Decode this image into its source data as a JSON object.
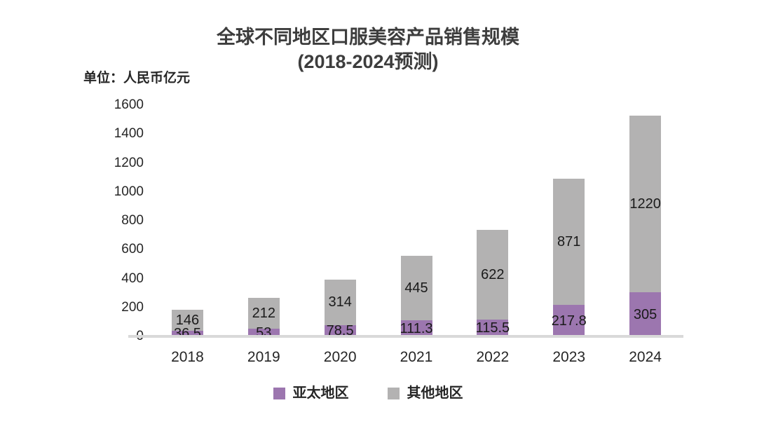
{
  "title": {
    "line1": "全球不同地区口服美容产品销售规模",
    "line2": "(2018-2024预测)"
  },
  "unit_label": "单位：人民币亿元",
  "colors": {
    "apac": "#9c76af",
    "other": "#b3b2b2",
    "baseline": "#d9d9d9",
    "label_text": "#1a1a1a"
  },
  "chart_data": {
    "type": "bar",
    "stacked": true,
    "title": "全球不同地区口服美容产品销售规模 (2018-2024预测)",
    "unit": "单位：人民币亿元",
    "categories": [
      "2018",
      "2019",
      "2020",
      "2021",
      "2022",
      "2023",
      "2024"
    ],
    "series": [
      {
        "name": "亚太地区",
        "color": "#9c76af",
        "values": [
          36.5,
          53,
          78.5,
          111.3,
          115.5,
          217.8,
          305
        ]
      },
      {
        "name": "其他地区",
        "color": "#b3b2b2",
        "values": [
          146,
          212,
          314,
          445,
          622,
          871,
          1220
        ]
      }
    ],
    "ylim": [
      0,
      1600
    ],
    "yticks": [
      0,
      200,
      400,
      600,
      800,
      1000,
      1200,
      1400,
      1600
    ],
    "grid": false,
    "legend_position": "bottom"
  }
}
